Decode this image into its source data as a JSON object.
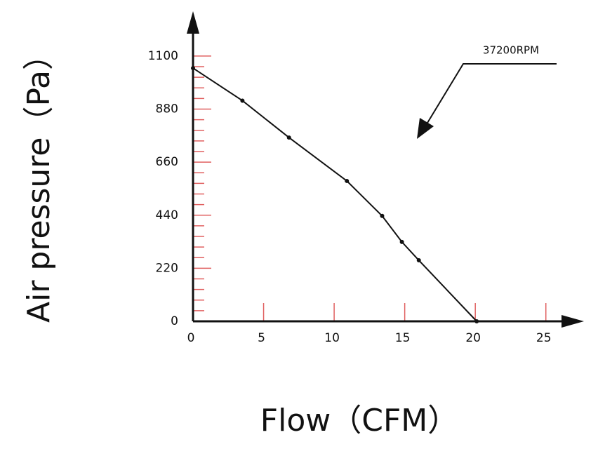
{
  "chart_data": {
    "type": "line",
    "x_label": "Flow（CFM）",
    "y_label": "Air pressure（Pa）",
    "annotation": "37200RPM",
    "x": [
      0,
      3.5,
      6.8,
      10.9,
      13.4,
      14.8,
      16,
      20.1
    ],
    "series": [
      {
        "color": "#111111",
        "values": [
          1050,
          915,
          762,
          582,
          437,
          329,
          253,
          0
        ]
      }
    ],
    "xlim": [
      0,
      27.6
    ],
    "ylim": [
      0,
      1280
    ],
    "xticks": [
      0,
      5,
      10,
      15,
      20,
      25
    ],
    "yticks": [
      0,
      220,
      440,
      660,
      880,
      1100
    ],
    "minor_divisions": 5,
    "tick_color": "#e06060"
  }
}
